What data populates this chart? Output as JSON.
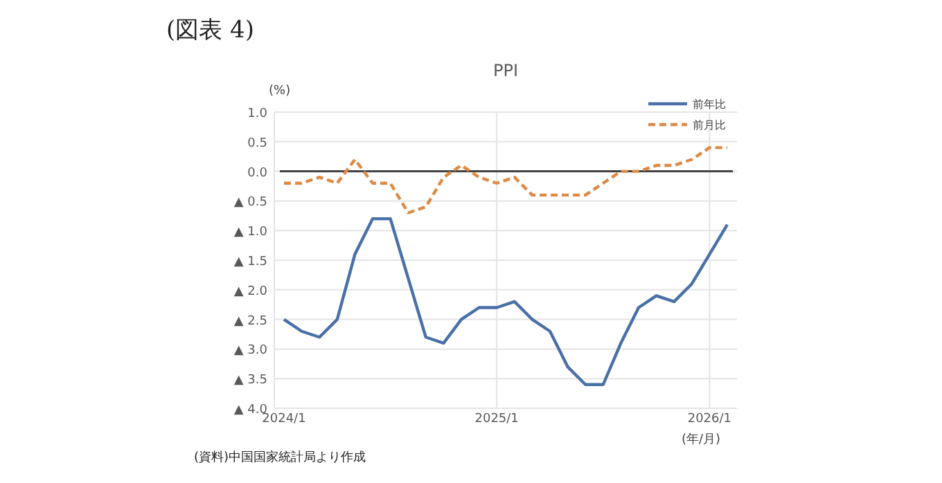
{
  "chart_data": {
    "type": "line",
    "title": "PPI",
    "ylabel": "(%)",
    "xlabel": "(年/月)",
    "annotations": [
      "(図表 4)",
      "(資料)中国国家統計局より作成"
    ],
    "categories": [
      "2024/1",
      null,
      null,
      null,
      null,
      null,
      null,
      null,
      null,
      null,
      null,
      null,
      "2025/1",
      null,
      null,
      null,
      null,
      null,
      null,
      null,
      null,
      null,
      null,
      null,
      "2026/1",
      null
    ],
    "series": [
      {
        "name": "前年比",
        "color": "#4a70a8",
        "line_style": "solid",
        "values": [
          -2.5,
          -2.7,
          -2.8,
          -2.5,
          -1.4,
          -0.8,
          -0.8,
          -1.8,
          -2.8,
          -2.9,
          -2.5,
          -2.3,
          -2.3,
          -2.2,
          -2.5,
          -2.7,
          -3.3,
          -3.6,
          -3.6,
          -2.9,
          -2.3,
          -2.1,
          -2.2,
          -1.9,
          -1.4,
          -0.9
        ]
      },
      {
        "name": "前月比",
        "color": "#dd8a45",
        "line_style": "dashed",
        "values": [
          -0.2,
          -0.2,
          -0.1,
          -0.2,
          0.2,
          -0.2,
          -0.2,
          -0.7,
          -0.6,
          -0.1,
          0.1,
          -0.1,
          -0.2,
          -0.1,
          -0.4,
          -0.4,
          -0.4,
          -0.4,
          -0.2,
          0.0,
          0.0,
          0.1,
          0.1,
          0.2,
          0.4,
          0.4
        ]
      }
    ],
    "ylim": [
      -4.0,
      1.0
    ],
    "yticks": [
      {
        "value": 1.0,
        "label": "1.0"
      },
      {
        "value": 0.5,
        "label": "0.5"
      },
      {
        "value": 0.0,
        "label": "0.0"
      },
      {
        "value": -0.5,
        "label": "▲ 0.5"
      },
      {
        "value": -1.0,
        "label": "▲ 1.0"
      },
      {
        "value": -1.5,
        "label": "▲ 1.5"
      },
      {
        "value": -2.0,
        "label": "▲ 2.0"
      },
      {
        "value": -2.5,
        "label": "▲ 2.5"
      },
      {
        "value": -3.0,
        "label": "▲ 3.0"
      },
      {
        "value": -3.5,
        "label": "▲ 3.5"
      },
      {
        "value": -4.0,
        "label": "▲ 4.0"
      }
    ],
    "ref_lines": [
      {
        "axis": "y",
        "value": 0,
        "color": "#404040"
      }
    ],
    "grid": true,
    "legend": "top right",
    "marker": "none"
  }
}
